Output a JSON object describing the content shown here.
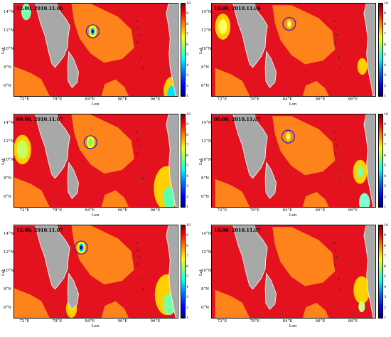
{
  "chart_data": [
    {
      "type": "heatmap",
      "timestamp": "12:00, 2010.11.06",
      "xlabel": "Lon",
      "ylabel": "Lat",
      "x_ticks": [
        "72°E",
        "78°E",
        "84°E",
        "90°E",
        "96°E"
      ],
      "y_ticks": [
        "14°N",
        "12°N",
        "10°N",
        "8°N",
        "6°N"
      ],
      "colorbar": {
        "min": 1,
        "max": 10,
        "ticks": [
          "10",
          "9",
          "8",
          "7",
          "6",
          "5",
          "4",
          "3",
          "2",
          "1"
        ]
      },
      "xlim": [
        70,
        100
      ],
      "ylim": [
        5,
        15
      ],
      "marked_center": {
        "lon": 84.4,
        "lat": 12.0
      },
      "cyclone": {
        "lon": 84.4,
        "lat": 12.0,
        "rings": [
          0.7,
          0.4,
          0.2
        ],
        "colors": [
          "#ffff00",
          "#00c8ff",
          "#0000cc"
        ]
      },
      "patches": [
        {
          "lon": 72.2,
          "lat": 14.1,
          "r": 0.9,
          "color": "#7fffb0"
        },
        {
          "lon": 99.0,
          "lat": 5.5,
          "r": 1.6,
          "color": "#ffd000"
        },
        {
          "lon": 99.0,
          "lat": 5.2,
          "r": 0.9,
          "color": "#00e0ff"
        }
      ]
    },
    {
      "type": "heatmap",
      "timestamp": "18:00, 2010.11.06",
      "xlabel": "Lon",
      "ylabel": "Lat",
      "x_ticks": [
        "72°E",
        "78°E",
        "84°E",
        "90°E",
        "96°E"
      ],
      "y_ticks": [
        "14°N",
        "12°N",
        "10°N",
        "8°N",
        "6°N"
      ],
      "colorbar": {
        "min": 1,
        "max": 10,
        "ticks": [
          "10",
          "9",
          "8",
          "7",
          "6",
          "5",
          "4",
          "3",
          "2",
          "1"
        ]
      },
      "xlim": [
        70,
        100
      ],
      "ylim": [
        5,
        15
      ],
      "marked_center": {
        "lon": 84.2,
        "lat": 12.8
      },
      "cyclone": {
        "lon": 84.2,
        "lat": 12.8,
        "rings": [
          0.5,
          0.3
        ],
        "colors": [
          "#ffd000",
          "#ffff80"
        ]
      },
      "patches": [
        {
          "lon": 72.0,
          "lat": 12.5,
          "r": 1.4,
          "color": "#ffd000"
        },
        {
          "lon": 72.0,
          "lat": 12.5,
          "r": 0.8,
          "color": "#ffff60"
        },
        {
          "lon": 97.6,
          "lat": 8.2,
          "r": 0.9,
          "color": "#ffd000"
        }
      ]
    },
    {
      "type": "heatmap",
      "timestamp": "00:00, 2010.11.07",
      "xlabel": "Lon",
      "ylabel": "Lat",
      "x_ticks": [
        "72°E",
        "78°E",
        "84°E",
        "90°E",
        "96°E"
      ],
      "y_ticks": [
        "14°N",
        "12°N",
        "10°N",
        "8°N",
        "6°N"
      ],
      "colorbar": {
        "min": 1,
        "max": 10,
        "ticks": [
          "10",
          "9",
          "8",
          "7",
          "6",
          "5",
          "4",
          "3",
          "2",
          "1"
        ]
      },
      "xlim": [
        70,
        100
      ],
      "ylim": [
        5,
        15
      ],
      "marked_center": {
        "lon": 84.0,
        "lat": 12.0
      },
      "cyclone": {
        "lon": 84.0,
        "lat": 12.0,
        "rings": [
          0.7,
          0.4
        ],
        "colors": [
          "#ffff00",
          "#60ff90"
        ]
      },
      "patches": [
        {
          "lon": 71.5,
          "lat": 11.2,
          "r": 1.6,
          "color": "#ffd000"
        },
        {
          "lon": 71.5,
          "lat": 11.2,
          "r": 1.0,
          "color": "#c8ff60"
        },
        {
          "lon": 98.0,
          "lat": 7.0,
          "r": 2.4,
          "color": "#ffd000"
        },
        {
          "lon": 98.5,
          "lat": 6.0,
          "r": 1.2,
          "color": "#60ffb0"
        }
      ]
    },
    {
      "type": "heatmap",
      "timestamp": "06:00, 2010.11.07",
      "xlabel": "Lon",
      "ylabel": "Lat",
      "x_ticks": [
        "72°E",
        "78°E",
        "84°E",
        "90°E",
        "96°E"
      ],
      "y_ticks": [
        "14°N",
        "12°N",
        "10°N",
        "8°N",
        "6°N"
      ],
      "colorbar": {
        "min": 1,
        "max": 10,
        "ticks": [
          "10",
          "9",
          "8",
          "7",
          "6",
          "5",
          "4",
          "3",
          "2",
          "1"
        ]
      },
      "xlim": [
        70,
        100
      ],
      "ylim": [
        5,
        15
      ],
      "marked_center": {
        "lon": 84.0,
        "lat": 12.6
      },
      "cyclone": {
        "lon": 84.0,
        "lat": 12.6,
        "rings": [
          0.5,
          0.3
        ],
        "colors": [
          "#ffd000",
          "#ffff60"
        ]
      },
      "patches": [
        {
          "lon": 97.2,
          "lat": 8.8,
          "r": 1.3,
          "color": "#ffd000"
        },
        {
          "lon": 97.2,
          "lat": 8.8,
          "r": 0.6,
          "color": "#80ffa0"
        },
        {
          "lon": 98.0,
          "lat": 5.5,
          "r": 1.0,
          "color": "#7fffd0"
        }
      ]
    },
    {
      "type": "heatmap",
      "timestamp": "12:00, 2010.11.07",
      "xlabel": "Lon",
      "ylabel": "Lat",
      "x_ticks": [
        "72°E",
        "78°E",
        "84°E",
        "90°E",
        "96°E"
      ],
      "y_ticks": [
        "14°N",
        "12°N",
        "10°N",
        "8°N",
        "6°N"
      ],
      "colorbar": {
        "min": 1,
        "max": 10,
        "ticks": [
          "10",
          "9",
          "8",
          "7",
          "6",
          "5",
          "4",
          "3",
          "2",
          "1"
        ]
      },
      "xlim": [
        70,
        100
      ],
      "ylim": [
        5,
        15
      ],
      "marked_center": {
        "lon": 82.3,
        "lat": 12.6
      },
      "cyclone": {
        "lon": 82.3,
        "lat": 12.6,
        "rings": [
          0.7,
          0.45,
          0.25
        ],
        "colors": [
          "#ffff00",
          "#00e0ff",
          "#0000cc"
        ]
      },
      "patches": [
        {
          "lon": 98.0,
          "lat": 7.5,
          "r": 2.2,
          "color": "#ffd000"
        },
        {
          "lon": 98.5,
          "lat": 6.5,
          "r": 1.2,
          "color": "#7fffa0"
        },
        {
          "lon": 80.5,
          "lat": 6.0,
          "r": 1.0,
          "color": "#ffd000"
        }
      ]
    },
    {
      "type": "heatmap",
      "timestamp": "18:00, 2010.11.07",
      "xlabel": "Lon",
      "ylabel": "Lat",
      "x_ticks": [
        "72°E",
        "78°E",
        "84°E",
        "90°E",
        "96°E"
      ],
      "y_ticks": [
        "14°N",
        "12°N",
        "10°N",
        "8°N",
        "6°N"
      ],
      "colorbar": {
        "min": 1,
        "max": 10,
        "ticks": [
          "10",
          "9",
          "8",
          "7",
          "6",
          "5",
          "4",
          "3",
          "2",
          "1"
        ]
      },
      "xlim": [
        70,
        100
      ],
      "ylim": [
        5,
        15
      ],
      "marked_center": null,
      "cyclone": null,
      "patches": [
        {
          "lon": 97.5,
          "lat": 8.0,
          "r": 1.5,
          "color": "#ffd000"
        },
        {
          "lon": 97.5,
          "lat": 6.2,
          "r": 0.6,
          "color": "#c8ff80"
        }
      ]
    }
  ],
  "colors": {
    "sea_high": "#e3121e",
    "sea_mid": "#ff8a1a",
    "land": "#a8a8a8",
    "ring": "#2a2ac8"
  }
}
